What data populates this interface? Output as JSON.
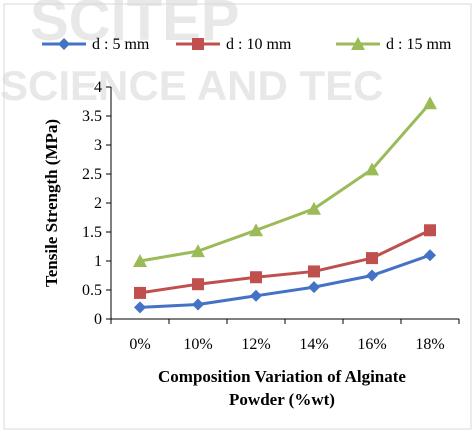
{
  "chart_data": {
    "type": "line",
    "categories": [
      "0%",
      "10%",
      "12%",
      "14%",
      "16%",
      "18%"
    ],
    "series": [
      {
        "name": "d : 5 mm",
        "values": [
          0.2,
          0.25,
          0.4,
          0.55,
          0.75,
          1.1
        ],
        "color": "#4472c4",
        "marker": "diamond"
      },
      {
        "name": "d : 10 mm",
        "values": [
          0.45,
          0.6,
          0.72,
          0.82,
          1.05,
          1.53
        ],
        "color": "#c0504d",
        "marker": "square"
      },
      {
        "name": "d : 15 mm",
        "values": [
          1.0,
          1.17,
          1.53,
          1.9,
          2.58,
          3.72
        ],
        "color": "#9bbb59",
        "marker": "triangle"
      }
    ],
    "ylabel": "Tensile Strength (MPa)",
    "xlabel_line1": "Composition Variation of Alginate",
    "xlabel_line2": "Powder (%wt)",
    "ylim": [
      0,
      4
    ],
    "yticks": [
      "0",
      "0.5",
      "1",
      "1.5",
      "2",
      "2.5",
      "3",
      "3.5",
      "4"
    ],
    "grid": false,
    "legend_position": "top"
  }
}
